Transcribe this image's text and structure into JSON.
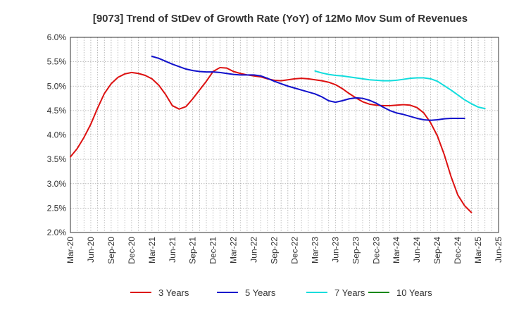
{
  "chart_data": {
    "type": "line",
    "title": "[9073]  Trend of StDev of Growth Rate (YoY) of 12Mo Mov Sum of Revenues",
    "xlabel": "",
    "ylabel": "",
    "ylim": [
      2.0,
      6.0
    ],
    "yticks": [
      "6.0%",
      "5.5%",
      "5.0%",
      "4.5%",
      "4.0%",
      "3.5%",
      "3.0%",
      "2.5%",
      "2.0%"
    ],
    "ytick_values": [
      6.0,
      5.5,
      5.0,
      4.5,
      4.0,
      3.5,
      3.0,
      2.5,
      2.0
    ],
    "x_categories": [
      "Mar-20",
      "Jun-20",
      "Sep-20",
      "Dec-20",
      "Mar-21",
      "Jun-21",
      "Sep-21",
      "Dec-21",
      "Mar-22",
      "Jun-22",
      "Sep-22",
      "Dec-22",
      "Mar-23",
      "Jun-23",
      "Sep-23",
      "Dec-23",
      "Mar-24",
      "Jun-24",
      "Sep-24",
      "Dec-24",
      "Mar-25",
      "Jun-25"
    ],
    "x_count": 64,
    "grid": true,
    "legend_position": "bottom",
    "series": [
      {
        "name": "3 Years",
        "color": "#dd1111",
        "start_index": 0,
        "values": [
          3.55,
          3.72,
          3.95,
          4.22,
          4.55,
          4.85,
          5.05,
          5.18,
          5.25,
          5.28,
          5.26,
          5.22,
          5.15,
          5.02,
          4.83,
          4.6,
          4.53,
          4.58,
          4.74,
          4.92,
          5.1,
          5.3,
          5.38,
          5.37,
          5.3,
          5.26,
          5.23,
          5.21,
          5.19,
          5.15,
          5.12,
          5.11,
          5.13,
          5.15,
          5.16,
          5.15,
          5.13,
          5.11,
          5.08,
          5.03,
          4.95,
          4.85,
          4.76,
          4.68,
          4.63,
          4.61,
          4.6,
          4.6,
          4.61,
          4.62,
          4.61,
          4.56,
          4.45,
          4.25,
          3.98,
          3.6,
          3.15,
          2.77,
          2.55,
          2.41
        ]
      },
      {
        "name": "5 Years",
        "color": "#1111cc",
        "start_index": 12,
        "values": [
          5.61,
          5.57,
          5.51,
          5.45,
          5.4,
          5.35,
          5.32,
          5.3,
          5.29,
          5.29,
          5.28,
          5.26,
          5.24,
          5.23,
          5.23,
          5.23,
          5.21,
          5.16,
          5.1,
          5.05,
          5.0,
          4.96,
          4.92,
          4.88,
          4.84,
          4.78,
          4.7,
          4.67,
          4.7,
          4.74,
          4.76,
          4.75,
          4.71,
          4.65,
          4.57,
          4.5,
          4.45,
          4.42,
          4.38,
          4.34,
          4.31,
          4.3,
          4.31,
          4.33,
          4.34,
          4.34,
          4.34
        ]
      },
      {
        "name": "7 Years",
        "color": "#11dddd",
        "start_index": 36,
        "values": [
          5.31,
          5.27,
          5.24,
          5.22,
          5.21,
          5.19,
          5.17,
          5.15,
          5.13,
          5.12,
          5.11,
          5.11,
          5.12,
          5.14,
          5.16,
          5.17,
          5.17,
          5.15,
          5.1,
          5.01,
          4.92,
          4.82,
          4.72,
          4.64,
          4.57,
          4.54
        ]
      },
      {
        "name": "10 Years",
        "color": "#118811",
        "start_index": 0,
        "values": []
      }
    ]
  }
}
